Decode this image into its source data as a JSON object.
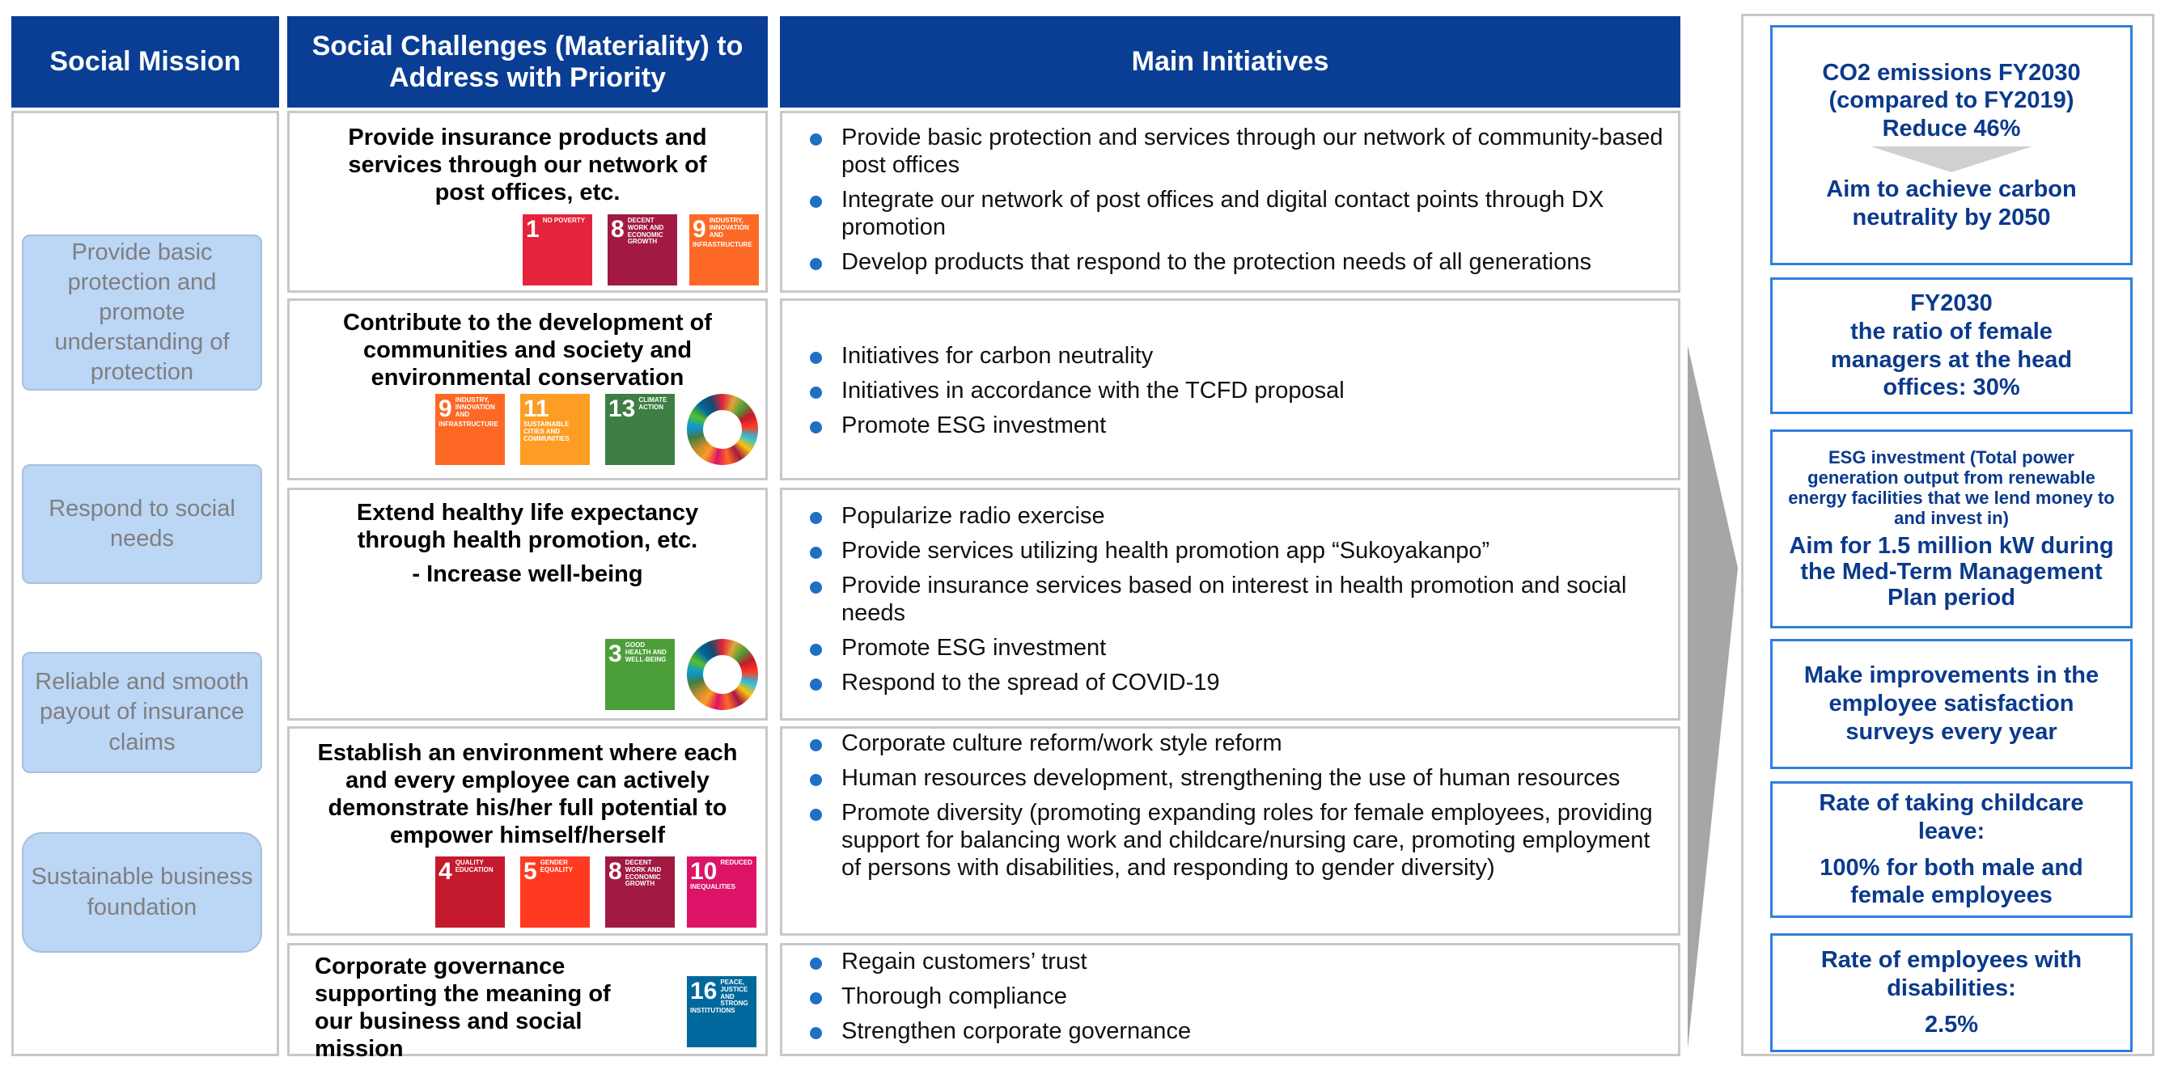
{
  "headers": {
    "mission": "Social Mission",
    "challenges": "Social Challenges (Materiality) to Address with Priority",
    "initiatives": "Main Initiatives"
  },
  "missions": [
    "Provide basic protection and promote understanding of protection",
    "Respond to social needs",
    "Reliable and smooth payout of insurance claims",
    "Sustainable business foundation"
  ],
  "rows": [
    {
      "challenge": "Provide insurance products and services through our network of post offices, etc.",
      "sdgs": [
        {
          "num": "1",
          "label": "NO POVERTY",
          "color": "#e5243b"
        },
        {
          "num": "8",
          "label": "DECENT WORK AND ECONOMIC GROWTH",
          "color": "#a21942"
        },
        {
          "num": "9",
          "label": "INDUSTRY, INNOVATION AND INFRASTRUCTURE",
          "color": "#fd6925"
        }
      ],
      "initiatives": [
        "Provide basic protection and services through our network of community-based post offices",
        "Integrate our network of post offices and digital contact points through DX promotion",
        "Develop products that respond to the protection needs of all generations"
      ]
    },
    {
      "challenge": "Contribute to the development of communities and society and environmental conservation",
      "sdgs": [
        {
          "num": "9",
          "label": "INDUSTRY, INNOVATION AND INFRASTRUCTURE",
          "color": "#fd6925"
        },
        {
          "num": "11",
          "label": "SUSTAINABLE CITIES AND COMMUNITIES",
          "color": "#fd9d24"
        },
        {
          "num": "13",
          "label": "CLIMATE ACTION",
          "color": "#3f7e44"
        }
      ],
      "initiatives": [
        "Initiatives for carbon neutrality",
        "Initiatives in accordance with the TCFD proposal",
        "Promote ESG investment"
      ]
    },
    {
      "challenge": "Extend healthy life expectancy through health promotion, etc.",
      "challenge_sub": "- Increase well-being",
      "sdgs": [
        {
          "num": "3",
          "label": "GOOD HEALTH AND WELL-BEING",
          "color": "#4c9f38"
        }
      ],
      "initiatives": [
        "Popularize radio exercise",
        "Provide services utilizing health promotion app “Sukoyakanpo”",
        "Provide insurance services based on interest in health promotion and social needs",
        "Promote ESG investment",
        "Respond to the spread of COVID-19"
      ]
    },
    {
      "challenge": "Establish an environment where each and every employee can actively demonstrate his/her full potential to empower himself/herself",
      "sdgs": [
        {
          "num": "4",
          "label": "QUALITY EDUCATION",
          "color": "#c5192d"
        },
        {
          "num": "5",
          "label": "GENDER EQUALITY",
          "color": "#ff3a21"
        },
        {
          "num": "8",
          "label": "DECENT WORK AND ECONOMIC GROWTH",
          "color": "#a21942"
        },
        {
          "num": "10",
          "label": "REDUCED INEQUALITIES",
          "color": "#dd1367"
        }
      ],
      "initiatives": [
        "Corporate culture reform/work style reform",
        "Human resources development, strengthening the use of human resources",
        "Promote diversity (promoting expanding roles for female employees, providing support for balancing work and childcare/nursing care, promoting employment of persons with disabilities, and responding to gender diversity)"
      ]
    },
    {
      "challenge": "Corporate governance supporting the meaning of our business and social mission",
      "sdgs": [
        {
          "num": "16",
          "label": "PEACE, JUSTICE AND STRONG INSTITUTIONS",
          "color": "#00689d"
        }
      ],
      "initiatives": [
        "Regain customers’ trust",
        "Thorough compliance",
        "Strengthen corporate governance"
      ]
    }
  ],
  "targets": {
    "co2_title": "CO2 emissions FY2030 (compared to FY2019)",
    "co2_value": "Reduce 46%",
    "co2_goal": "Aim to achieve carbon neutrality by 2050",
    "female_line1": "FY2030",
    "female_line2": "the ratio of female managers at the head offices: 30%",
    "esg_desc": "ESG investment (Total power generation output from renewable energy facilities that we lend money to and invest in)",
    "esg_goal": "Aim for 1.5 million kW during the Med-Term Management Plan period",
    "survey": "Make improvements in the employee satisfaction surveys every year",
    "childcare_title": "Rate of taking childcare leave:",
    "childcare_value": "100% for both male and female employees",
    "disab_title": "Rate of employees with disabilities:",
    "disab_value": "2.5%"
  }
}
